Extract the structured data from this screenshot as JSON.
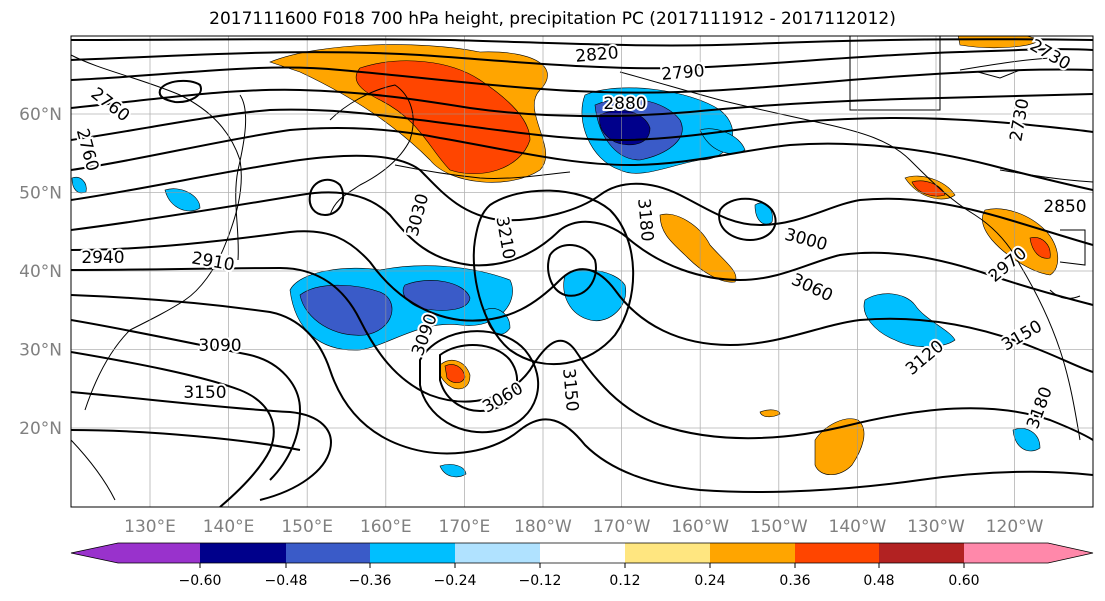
{
  "title": "2017111600 F018 700 hPa height, precipitation PC (2017111912 - 2017112012)",
  "axes": {
    "lat_labels": [
      "60°N",
      "50°N",
      "40°N",
      "30°N",
      "20°N"
    ],
    "lon_labels": [
      "130°E",
      "140°E",
      "150°E",
      "160°E",
      "170°E",
      "180°W",
      "170°W",
      "160°W",
      "150°W",
      "140°W",
      "130°W",
      "120°W"
    ],
    "lat_values": [
      60,
      50,
      40,
      30,
      20
    ],
    "lon_values": [
      130,
      140,
      150,
      160,
      170,
      180,
      -170,
      -160,
      -150,
      -140,
      -130,
      -120
    ],
    "grid": true
  },
  "contour_labels": [
    "2760",
    "2760",
    "2790",
    "2730",
    "2730",
    "2820",
    "2880",
    "2850",
    "2940",
    "2910",
    "3030",
    "3210",
    "3180",
    "3000",
    "2970",
    "3060",
    "3090",
    "3090",
    "3060",
    "3150",
    "3150",
    "3120",
    "3150",
    "3180"
  ],
  "colorbar": {
    "ticks": [
      "−0.60",
      "−0.48",
      "−0.36",
      "−0.24",
      "−0.12",
      "0.12",
      "0.24",
      "0.36",
      "0.48",
      "0.60"
    ],
    "colors": [
      "#9932cc",
      "#00008b",
      "#3a5bc8",
      "#00bfff",
      "#b0e2ff",
      "#ffffff",
      "#ffe680",
      "#ffa500",
      "#ff4500",
      "#b22222",
      "#ff88aa"
    ]
  }
}
